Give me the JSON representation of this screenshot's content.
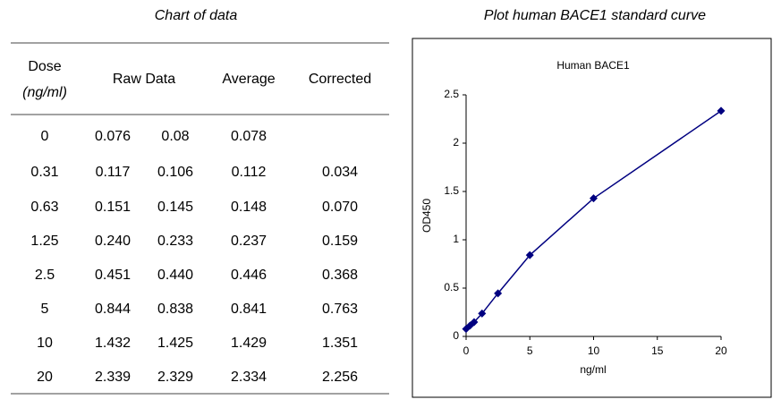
{
  "table": {
    "title": "Chart of data",
    "header": {
      "dose": "Dose",
      "unit": "(ng/ml)",
      "raw": "Raw Data",
      "average": "Average",
      "corrected": "Corrected"
    },
    "rows": [
      [
        "0",
        "0.076",
        "0.08",
        "0.078",
        null
      ],
      [
        "0.31",
        "0.117",
        "0.106",
        "0.112",
        "0.034"
      ],
      [
        "0.63",
        "0.151",
        "0.145",
        "0.148",
        "0.070"
      ],
      [
        "1.25",
        "0.240",
        "0.233",
        "0.237",
        "0.159"
      ],
      [
        "2.5",
        "0.451",
        "0.440",
        "0.446",
        "0.368"
      ],
      [
        "5",
        "0.844",
        "0.838",
        "0.841",
        "0.763"
      ],
      [
        "10",
        "1.432",
        "1.425",
        "1.429",
        "1.351"
      ],
      [
        "20",
        "2.339",
        "2.329",
        "2.334",
        "2.256"
      ]
    ]
  },
  "plot_heading": "Plot human BACE1 standard curve",
  "chart_data": {
    "type": "line",
    "title": "Human BACE1",
    "x_label": "ng/ml",
    "y_label": "OD450",
    "x": [
      0,
      0.31,
      0.63,
      1.25,
      2.5,
      5,
      10,
      20
    ],
    "values": [
      0.078,
      0.112,
      0.148,
      0.237,
      0.446,
      0.841,
      1.429,
      2.334
    ],
    "color": "#000080",
    "marker": "diamond",
    "xlim": [
      0,
      20
    ],
    "xticks": [
      0,
      5,
      10,
      15,
      20
    ],
    "ylim": [
      0,
      2.5
    ],
    "yticks": [
      0,
      0.5,
      1,
      1.5,
      2,
      2.5
    ],
    "grid": false
  }
}
